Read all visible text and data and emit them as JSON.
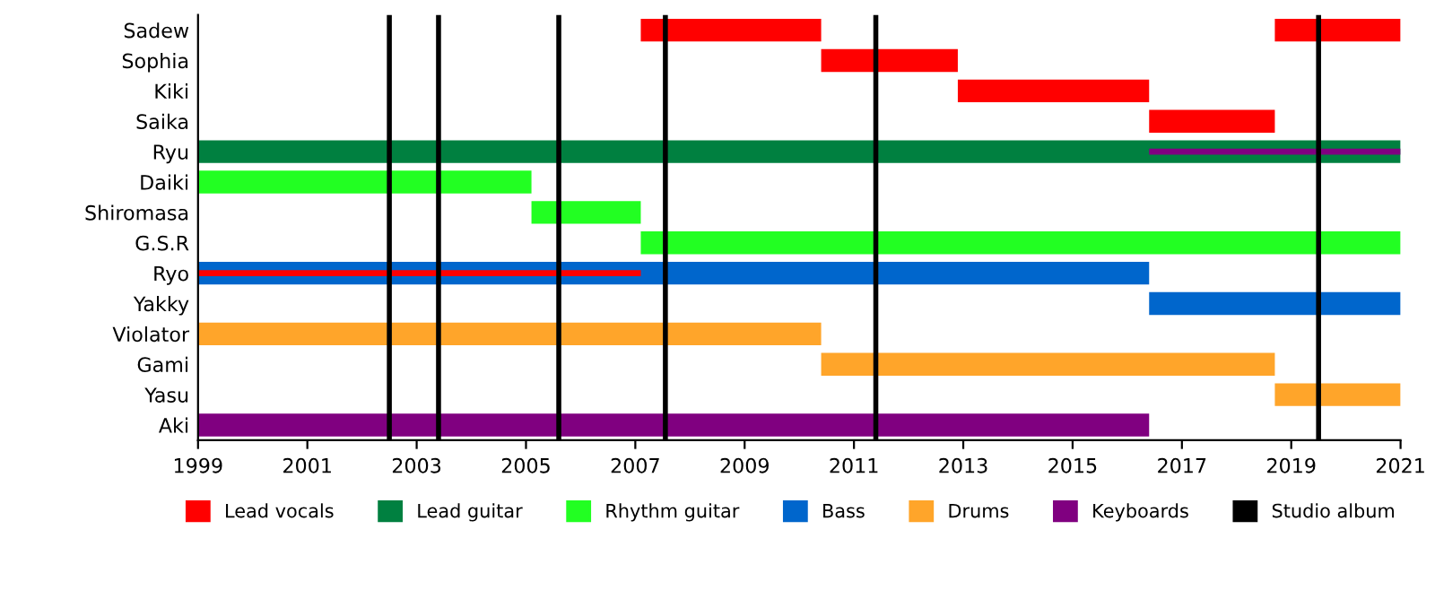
{
  "chart_data": {
    "type": "bar",
    "orientation": "horizontal",
    "categories": [
      "Sadew",
      "Sophia",
      "Kiki",
      "Saika",
      "Ryu",
      "Daiki",
      "Shiromasa",
      "G.S.R",
      "Ryo",
      "Yakky",
      "Violator",
      "Gami",
      "Yasu",
      "Aki"
    ],
    "series": [
      {
        "name": "Lead vocals",
        "color": "#ff0000",
        "base": [
          2007.1,
          2010.4,
          2012.9,
          2016.4,
          null,
          null,
          null,
          null,
          null,
          null,
          null,
          null,
          null,
          null
        ],
        "values": [
          3.3,
          2.5,
          3.5,
          2.3,
          null,
          null,
          null,
          null,
          null,
          null,
          null,
          null,
          null,
          null
        ]
      },
      {
        "color": "#ff0000",
        "base": [
          2018.7,
          null,
          null,
          null,
          null,
          null,
          null,
          null,
          null,
          null,
          null,
          null,
          null,
          null
        ],
        "values": [
          2.3,
          null,
          null,
          null,
          null,
          null,
          null,
          null,
          null,
          null,
          null,
          null,
          null,
          null
        ]
      },
      {
        "name": "Lead guitar",
        "color": "#008040",
        "base": [
          null,
          null,
          null,
          null,
          1999,
          null,
          null,
          null,
          null,
          null,
          null,
          null,
          null,
          null
        ],
        "values": [
          null,
          null,
          null,
          null,
          22,
          null,
          null,
          null,
          null,
          null,
          null,
          null,
          null,
          null
        ]
      },
      {
        "name": "Rhythm guitar",
        "color": "#22ff22",
        "base": [
          null,
          null,
          null,
          null,
          null,
          1999,
          2005.1,
          2007.1,
          null,
          null,
          null,
          null,
          null,
          null
        ],
        "values": [
          null,
          null,
          null,
          null,
          null,
          6.1,
          2.0,
          13.9,
          null,
          null,
          null,
          null,
          null,
          null
        ]
      },
      {
        "name": "Bass",
        "color": "#0066cc",
        "base": [
          null,
          null,
          null,
          null,
          null,
          null,
          null,
          null,
          1999,
          2016.4,
          null,
          null,
          null,
          null
        ],
        "values": [
          null,
          null,
          null,
          null,
          null,
          null,
          null,
          null,
          17.4,
          4.6,
          null,
          null,
          null,
          null
        ]
      },
      {
        "name": "Drums",
        "color": "#ffa52a",
        "base": [
          null,
          null,
          null,
          null,
          null,
          null,
          null,
          null,
          null,
          null,
          1999,
          2010.4,
          2018.7,
          null
        ],
        "values": [
          null,
          null,
          null,
          null,
          null,
          null,
          null,
          null,
          null,
          null,
          11.4,
          8.3,
          2.3,
          null
        ]
      },
      {
        "name": "Keyboards",
        "color": "#800080",
        "base": [
          null,
          null,
          null,
          null,
          null,
          null,
          null,
          null,
          null,
          null,
          null,
          null,
          null,
          1999
        ],
        "values": [
          null,
          null,
          null,
          null,
          null,
          null,
          null,
          null,
          null,
          null,
          null,
          null,
          null,
          17.4
        ]
      },
      {
        "color": "#800080",
        "base": [
          null,
          null,
          null,
          null,
          2016.4,
          null,
          null,
          null,
          null,
          null,
          null,
          null,
          null,
          null
        ],
        "values": [
          null,
          null,
          null,
          null,
          4.6,
          null,
          null,
          null,
          null,
          null,
          null,
          null,
          null,
          null
        ]
      },
      {
        "color": "#ff0000",
        "base": [
          null,
          null,
          null,
          null,
          null,
          null,
          null,
          null,
          1999,
          null,
          null,
          null,
          null,
          null
        ],
        "values": [
          null,
          null,
          null,
          null,
          null,
          null,
          null,
          null,
          8.1,
          null,
          null,
          null,
          null,
          null
        ]
      }
    ],
    "ref_lines": [
      {
        "axis": "x",
        "value": 2002.5,
        "label": "Studio album",
        "color": "#000000"
      },
      {
        "axis": "x",
        "value": 2003.4,
        "color": "#000000"
      },
      {
        "axis": "x",
        "value": 2005.6,
        "color": "#000000"
      },
      {
        "axis": "x",
        "value": 2007.55,
        "color": "#000000"
      },
      {
        "axis": "x",
        "value": 2011.4,
        "color": "#000000"
      },
      {
        "axis": "x",
        "value": 2019.5,
        "color": "#000000"
      }
    ],
    "xlim": [
      1999,
      2021
    ],
    "xticks": [
      1999,
      2001,
      2003,
      2005,
      2007,
      2009,
      2011,
      2013,
      2015,
      2017,
      2019,
      2021
    ],
    "legend": "bottom",
    "grid": false
  }
}
